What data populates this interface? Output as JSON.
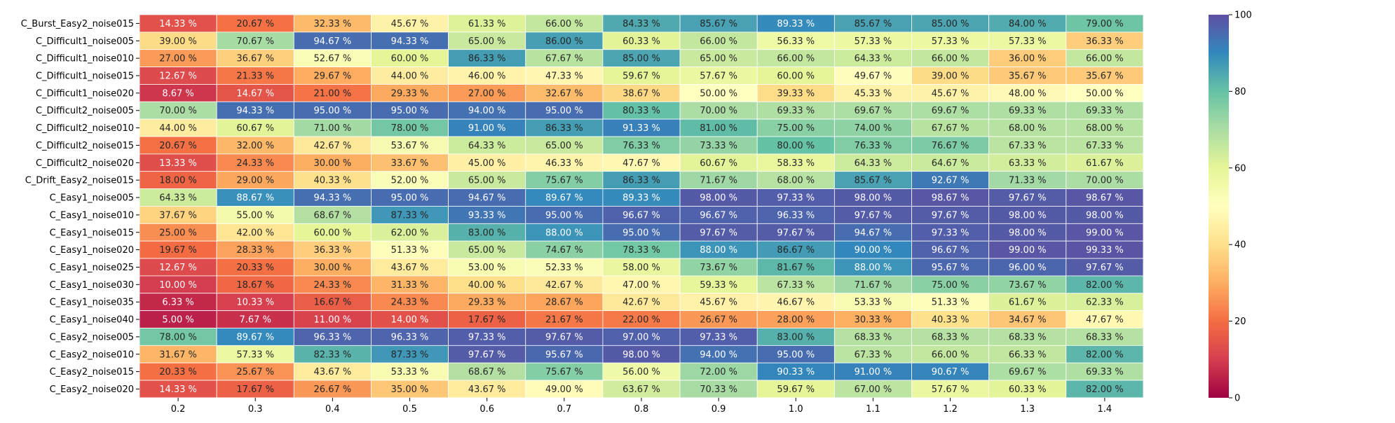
{
  "chart_data": {
    "type": "heatmap",
    "title": "",
    "xlabel": "",
    "ylabel": "",
    "x_categories": [
      "0.2",
      "0.3",
      "0.4",
      "0.5",
      "0.6",
      "0.7",
      "0.8",
      "0.9",
      "1.0",
      "1.1",
      "1.2",
      "1.3",
      "1.4"
    ],
    "y_categories": [
      "C_Burst_Easy2_noise015",
      "C_Difficult1_noise005",
      "C_Difficult1_noise010",
      "C_Difficult1_noise015",
      "C_Difficult1_noise020",
      "C_Difficult2_noise005",
      "C_Difficult2_noise010",
      "C_Difficult2_noise015",
      "C_Difficult2_noise020",
      "C_Drift_Easy2_noise015",
      "C_Easy1_noise005",
      "C_Easy1_noise010",
      "C_Easy1_noise015",
      "C_Easy1_noise020",
      "C_Easy1_noise025",
      "C_Easy1_noise030",
      "C_Easy1_noise035",
      "C_Easy1_noise040",
      "C_Easy2_noise005",
      "C_Easy2_noise010",
      "C_Easy2_noise015",
      "C_Easy2_noise020"
    ],
    "values": [
      [
        14.33,
        20.67,
        32.33,
        45.67,
        61.33,
        66.0,
        84.33,
        85.67,
        89.33,
        85.67,
        85.0,
        84.0,
        79.0
      ],
      [
        39.0,
        70.67,
        94.67,
        94.33,
        65.0,
        86.0,
        60.33,
        66.0,
        56.33,
        57.33,
        57.33,
        57.33,
        36.33
      ],
      [
        27.0,
        36.67,
        52.67,
        60.0,
        86.33,
        67.67,
        85.0,
        65.0,
        66.0,
        64.33,
        66.0,
        36.0,
        66.0
      ],
      [
        12.67,
        21.33,
        29.67,
        44.0,
        46.0,
        47.33,
        59.67,
        57.67,
        60.0,
        49.67,
        39.0,
        35.67,
        35.67
      ],
      [
        8.67,
        14.67,
        21.0,
        29.33,
        27.0,
        32.67,
        38.67,
        50.0,
        39.33,
        45.33,
        45.67,
        48.0,
        50.0
      ],
      [
        70.0,
        94.33,
        95.0,
        95.0,
        94.0,
        95.0,
        80.33,
        70.0,
        69.33,
        69.67,
        69.67,
        69.33,
        69.33
      ],
      [
        44.0,
        60.67,
        71.0,
        78.0,
        91.0,
        86.33,
        91.33,
        81.0,
        75.0,
        74.0,
        67.67,
        68.0,
        68.0
      ],
      [
        20.67,
        32.0,
        42.67,
        53.67,
        64.33,
        65.0,
        76.33,
        73.33,
        80.0,
        76.33,
        76.67,
        67.33,
        67.33
      ],
      [
        13.33,
        24.33,
        30.0,
        33.67,
        45.0,
        46.33,
        47.67,
        60.67,
        58.33,
        64.33,
        64.67,
        63.33,
        61.67
      ],
      [
        18.0,
        29.0,
        40.33,
        52.0,
        65.0,
        75.67,
        86.33,
        71.67,
        68.0,
        85.67,
        92.67,
        71.33,
        70.0
      ],
      [
        64.33,
        88.67,
        94.33,
        95.0,
        94.67,
        89.67,
        89.33,
        98.0,
        97.33,
        98.0,
        98.67,
        97.67,
        98.67
      ],
      [
        37.67,
        55.0,
        68.67,
        87.33,
        93.33,
        95.0,
        96.67,
        96.67,
        96.33,
        97.67,
        97.67,
        98.0,
        98.0
      ],
      [
        25.0,
        42.0,
        60.0,
        62.0,
        83.0,
        88.0,
        95.0,
        97.67,
        97.67,
        94.67,
        97.33,
        98.0,
        99.0
      ],
      [
        19.67,
        28.33,
        36.33,
        51.33,
        65.0,
        74.67,
        78.33,
        88.0,
        86.67,
        90.0,
        96.67,
        99.0,
        99.33
      ],
      [
        12.67,
        20.33,
        30.0,
        43.67,
        53.0,
        52.33,
        58.0,
        73.67,
        81.67,
        88.0,
        95.67,
        96.0,
        97.67
      ],
      [
        10.0,
        18.67,
        24.33,
        31.33,
        40.0,
        42.67,
        47.0,
        59.33,
        67.33,
        71.67,
        75.0,
        73.67,
        82.0
      ],
      [
        6.33,
        10.33,
        16.67,
        24.33,
        29.33,
        28.67,
        42.67,
        45.67,
        46.67,
        53.33,
        51.33,
        61.67,
        62.33
      ],
      [
        5.0,
        7.67,
        11.0,
        14.0,
        17.67,
        21.67,
        22.0,
        26.67,
        28.0,
        30.33,
        40.33,
        34.67,
        47.67
      ],
      [
        78.0,
        89.67,
        96.33,
        96.33,
        97.33,
        97.67,
        97.0,
        97.33,
        83.0,
        68.33,
        68.33,
        68.33,
        68.33
      ],
      [
        31.67,
        57.33,
        82.33,
        87.33,
        97.67,
        95.67,
        98.0,
        94.0,
        95.0,
        67.33,
        66.0,
        66.33,
        82.0
      ],
      [
        20.33,
        25.67,
        43.67,
        53.33,
        68.67,
        75.67,
        56.0,
        72.0,
        90.33,
        91.0,
        90.67,
        69.67,
        69.33
      ],
      [
        14.33,
        17.67,
        26.67,
        35.0,
        43.67,
        49.0,
        63.67,
        70.33,
        59.67,
        67.0,
        57.67,
        60.33,
        82.0
      ]
    ],
    "value_suffix": " %",
    "value_decimals": 2,
    "colorscale": "Spectral",
    "zlim": [
      0,
      100
    ],
    "colorbar_ticks": [
      0,
      20,
      40,
      60,
      80,
      100
    ],
    "grid": false,
    "legend": "colorbar-right"
  }
}
